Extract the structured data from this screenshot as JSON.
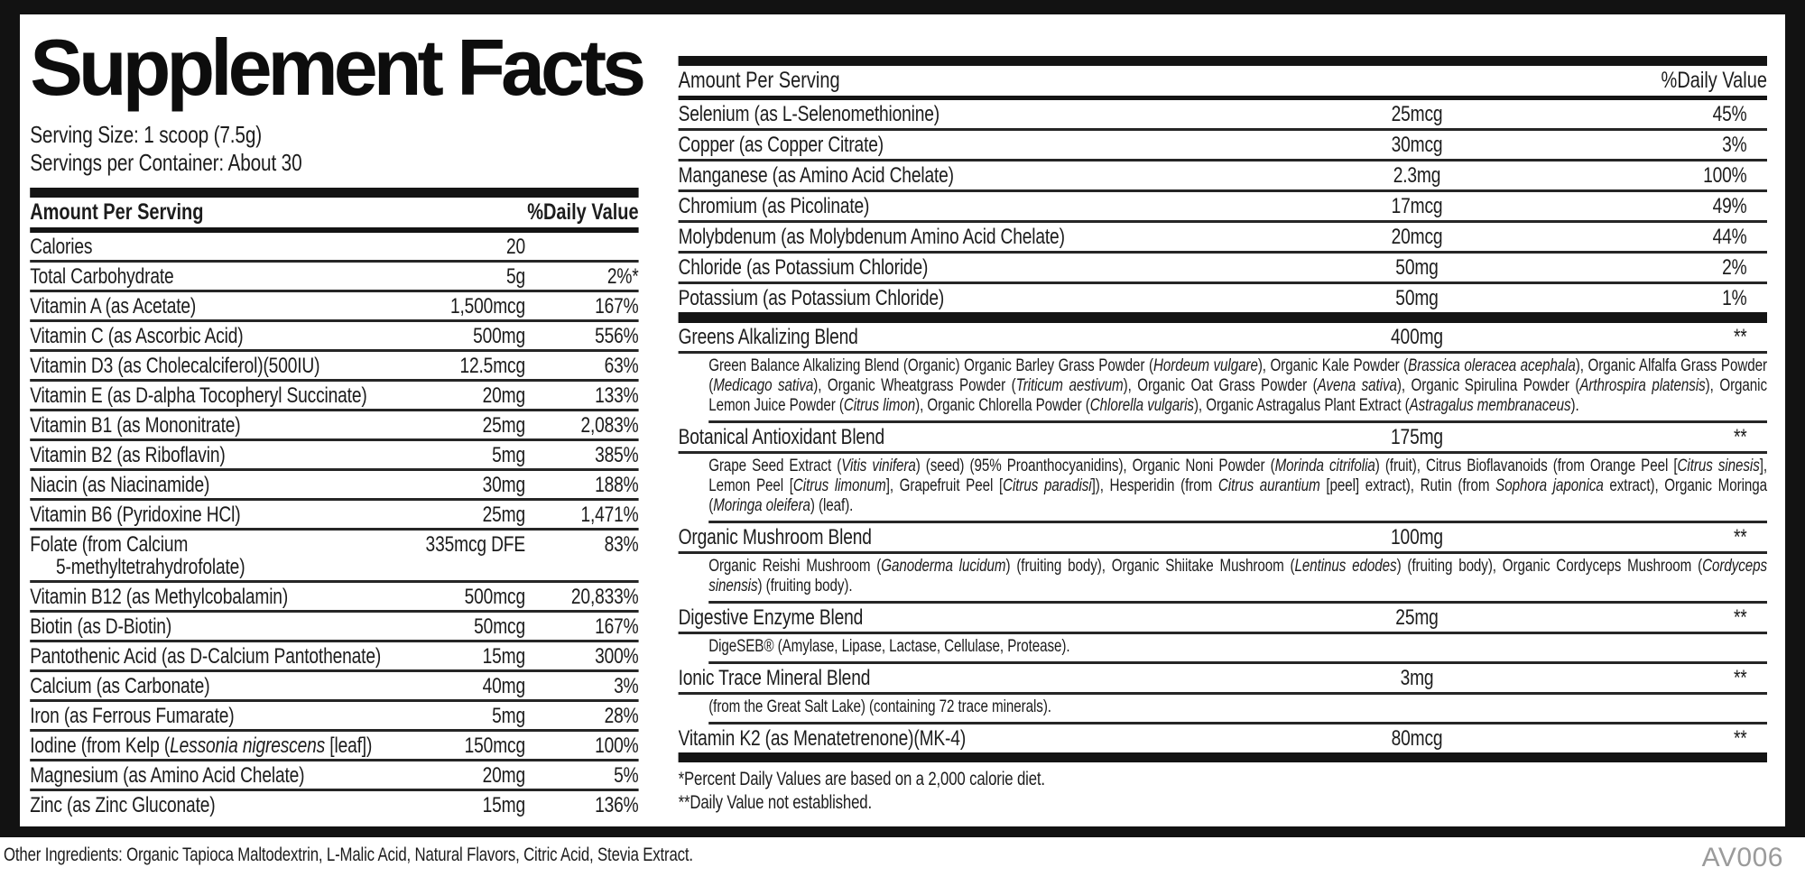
{
  "label": {
    "title": "Supplement Facts",
    "serving_size": "Serving Size: 1 scoop (7.5g)",
    "servings_per_container": "Servings per Container: About 30",
    "column_headers": {
      "amount": "Amount Per Serving",
      "daily_value": "%Daily Value"
    },
    "left_rows": [
      {
        "name": "Calories",
        "amount": "20",
        "dv": ""
      },
      {
        "name": "Total Carbohydrate",
        "amount": "5g",
        "dv": "2%*"
      },
      {
        "name": "Vitamin A (as Acetate)",
        "amount": "1,500mcg",
        "dv": "167%"
      },
      {
        "name": "Vitamin C (as Ascorbic Acid)",
        "amount": "500mg",
        "dv": "556%"
      },
      {
        "name": "Vitamin D3 (as Cholecalciferol)(500IU)",
        "amount": "12.5mcg",
        "dv": "63%"
      },
      {
        "name": "Vitamin E (as D-alpha Tocopheryl Succinate)",
        "amount": "20mg",
        "dv": "133%"
      },
      {
        "name": "Vitamin B1 (as Mononitrate)",
        "amount": "25mg",
        "dv": "2,083%"
      },
      {
        "name": "Vitamin B2 (as Riboflavin)",
        "amount": "5mg",
        "dv": "385%"
      },
      {
        "name": "Niacin (as Niacinamide)",
        "amount": "30mg",
        "dv": "188%"
      },
      {
        "name": "Vitamin B6 (Pyridoxine HCl)",
        "amount": "25mg",
        "dv": "1,471%"
      },
      {
        "name": [
          {
            "t": "Folate (from Calcium"
          },
          {
            "t": "5-methyltetrahydrofolate)",
            "br": true,
            "ind": true
          }
        ],
        "amount": "335mcg DFE",
        "dv": "83%"
      },
      {
        "name": "Vitamin B12 (as Methylcobalamin)",
        "amount": "500mcg",
        "dv": "20,833%"
      },
      {
        "name": "Biotin (as D-Biotin)",
        "amount": "50mcg",
        "dv": "167%"
      },
      {
        "name": "Pantothenic Acid (as D-Calcium Pantothenate)",
        "amount": "15mg",
        "dv": "300%"
      },
      {
        "name": "Calcium (as Carbonate)",
        "amount": "40mg",
        "dv": "3%"
      },
      {
        "name": "Iron (as Ferrous Fumarate)",
        "amount": "5mg",
        "dv": "28%"
      },
      {
        "name": [
          {
            "t": "Iodine (from Kelp ("
          },
          {
            "t": "Lessonia nigrescens",
            "i": true
          },
          {
            "t": " [leaf])"
          }
        ],
        "amount": "150mcg",
        "dv": "100%"
      },
      {
        "name": "Magnesium (as Amino Acid Chelate)",
        "amount": "20mg",
        "dv": "5%"
      },
      {
        "name": "Zinc (as Zinc Gluconate)",
        "amount": "15mg",
        "dv": "136%"
      }
    ],
    "right_rows": [
      {
        "name": "Selenium (as L-Selenomethionine)",
        "amount": "25mcg",
        "dv": "45%"
      },
      {
        "name": "Copper (as Copper Citrate)",
        "amount": "30mcg",
        "dv": "3%"
      },
      {
        "name": "Manganese (as Amino Acid Chelate)",
        "amount": "2.3mg",
        "dv": "100%"
      },
      {
        "name": "Chromium (as Picolinate)",
        "amount": "17mcg",
        "dv": "49%"
      },
      {
        "name": "Molybdenum (as Molybdenum Amino Acid Chelate)",
        "amount": "20mcg",
        "dv": "44%"
      },
      {
        "name": "Chloride (as Potassium Chloride)",
        "amount": "50mg",
        "dv": "2%"
      },
      {
        "name": "Potassium (as Potassium Chloride)",
        "amount": "50mg",
        "dv": "1%"
      }
    ],
    "blends": [
      {
        "name": "Greens Alkalizing Blend",
        "amount": "400mg",
        "dv": "**",
        "desc": [
          {
            "t": "Green Balance Alkalizing Blend (Organic) Organic Barley Grass Powder ("
          },
          {
            "t": "Hordeum vulgare",
            "i": true
          },
          {
            "t": "), Organic Kale Powder ("
          },
          {
            "t": "Brassica oleracea acephala",
            "i": true
          },
          {
            "t": "), Organic Alfalfa Grass Powder ("
          },
          {
            "t": "Medicago sativa",
            "i": true
          },
          {
            "t": "), Organic Wheatgrass Powder ("
          },
          {
            "t": "Triticum aestivum",
            "i": true
          },
          {
            "t": "), Organic Oat Grass Powder ("
          },
          {
            "t": "Avena sativa",
            "i": true
          },
          {
            "t": "), Organic Spirulina Powder ("
          },
          {
            "t": "Arthrospira platensis",
            "i": true
          },
          {
            "t": "), Organic Lemon Juice Powder ("
          },
          {
            "t": "Citrus limon",
            "i": true
          },
          {
            "t": "), Organic Chlorella Powder ("
          },
          {
            "t": "Chlorella vulgaris",
            "i": true
          },
          {
            "t": "), Organic Astragalus Plant Extract ("
          },
          {
            "t": "Astragalus membranaceus",
            "i": true
          },
          {
            "t": ")."
          }
        ]
      },
      {
        "name": "Botanical Antioxidant Blend",
        "amount": "175mg",
        "dv": "**",
        "desc": [
          {
            "t": "Grape Seed Extract ("
          },
          {
            "t": "Vitis vinifera",
            "i": true
          },
          {
            "t": ") (seed) (95% Proanthocyanidins), Organic Noni Powder ("
          },
          {
            "t": "Morinda citrifolia",
            "i": true
          },
          {
            "t": ") (fruit), Citrus Bioflavanoids (from Orange Peel ["
          },
          {
            "t": "Citrus sinesis",
            "i": true
          },
          {
            "t": "], Lemon Peel ["
          },
          {
            "t": "Citrus limonum",
            "i": true
          },
          {
            "t": "], Grapefruit Peel ["
          },
          {
            "t": "Citrus paradisi",
            "i": true
          },
          {
            "t": "]), Hesperidin (from "
          },
          {
            "t": "Citrus aurantium",
            "i": true
          },
          {
            "t": " [peel] extract), Rutin (from "
          },
          {
            "t": "Sophora japonica",
            "i": true
          },
          {
            "t": " extract), Organic Moringa ("
          },
          {
            "t": "Moringa oleifera",
            "i": true
          },
          {
            "t": ") (leaf)."
          }
        ]
      },
      {
        "name": "Organic Mushroom Blend",
        "amount": "100mg",
        "dv": "**",
        "desc": [
          {
            "t": "Organic Reishi Mushroom ("
          },
          {
            "t": "Ganoderma lucidum",
            "i": true
          },
          {
            "t": ") (fruiting body), Organic Shiitake Mushroom ("
          },
          {
            "t": "Lentinus edodes",
            "i": true
          },
          {
            "t": ") (fruiting body), Organic Cordyceps Mushroom ("
          },
          {
            "t": "Cordyceps sinensis",
            "i": true
          },
          {
            "t": ") (fruiting body)."
          }
        ]
      },
      {
        "name": "Digestive Enzyme Blend",
        "amount": "25mg",
        "dv": "**",
        "desc": [
          {
            "t": "DigeSEB® (Amylase, Lipase, Lactase, Cellulase, Protease)."
          }
        ]
      },
      {
        "name": "Ionic Trace Mineral Blend",
        "amount": "3mg",
        "dv": "**",
        "desc": [
          {
            "t": "(from the Great Salt Lake) (containing 72 trace minerals)."
          }
        ]
      }
    ],
    "vitamin_k2_row": {
      "name": "Vitamin K2 (as Menatetrenone)(MK-4)",
      "amount": "80mcg",
      "dv": "**"
    },
    "footnotes": [
      "*Percent Daily Values are based on a 2,000 calorie diet.",
      "**Daily Value not established."
    ],
    "other_ingredients": "Other Ingredients: Organic Tapioca Maltodextrin, L-Malic Acid, Natural Flavors, Citric Acid, Stevia Extract.",
    "code": "AV006",
    "colors": {
      "ink": "#121212",
      "rule": "#262626",
      "code_gray": "#9b9b9b"
    }
  }
}
